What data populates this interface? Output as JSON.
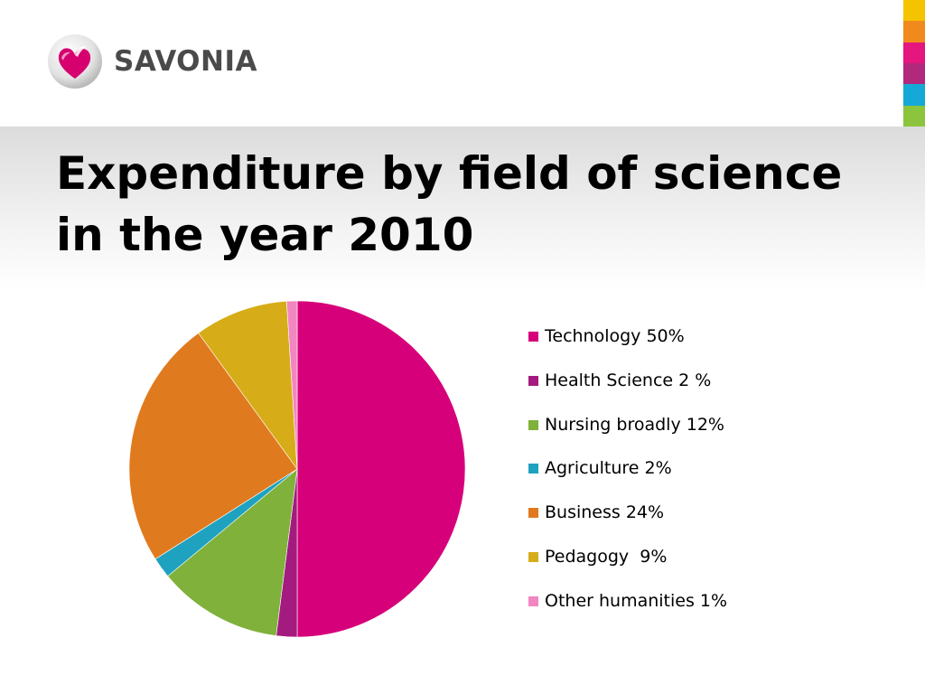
{
  "header": {
    "brand_name": "SAVONIA",
    "logo_icon": "savonia-heart-logo-icon",
    "color_strip": [
      "#f5c400",
      "#f08a1d",
      "#e5167d",
      "#b2287c",
      "#14a9d6",
      "#8cc43d"
    ]
  },
  "slide": {
    "title": "Expenditure by field of science in the year 2010"
  },
  "chart_data": {
    "type": "pie",
    "title": "Expenditure by field of science in the year 2010",
    "start_angle_deg": 0,
    "direction": "clockwise",
    "legend_position": "right",
    "slices": [
      {
        "category": "Technology",
        "value": 50,
        "legend_label": "Technology 50%",
        "color": "#d6007a"
      },
      {
        "category": "Health Science",
        "value": 2,
        "legend_label": "Health Science 2 %",
        "color": "#a31b7e"
      },
      {
        "category": "Nursing broadly",
        "value": 12,
        "legend_label": "Nursing broadly 12%",
        "color": "#7fb13b"
      },
      {
        "category": "Agriculture",
        "value": 2,
        "legend_label": "Agriculture 2%",
        "color": "#1ea2c0"
      },
      {
        "category": "Business",
        "value": 24,
        "legend_label": "Business 24%",
        "color": "#e07a1e"
      },
      {
        "category": "Pedagogy",
        "value": 9,
        "legend_label": "Pedagogy  9%",
        "color": "#d6ad18"
      },
      {
        "category": "Other humanities",
        "value": 1,
        "legend_label": "Other humanities 1%",
        "color": "#f286c0"
      }
    ]
  }
}
